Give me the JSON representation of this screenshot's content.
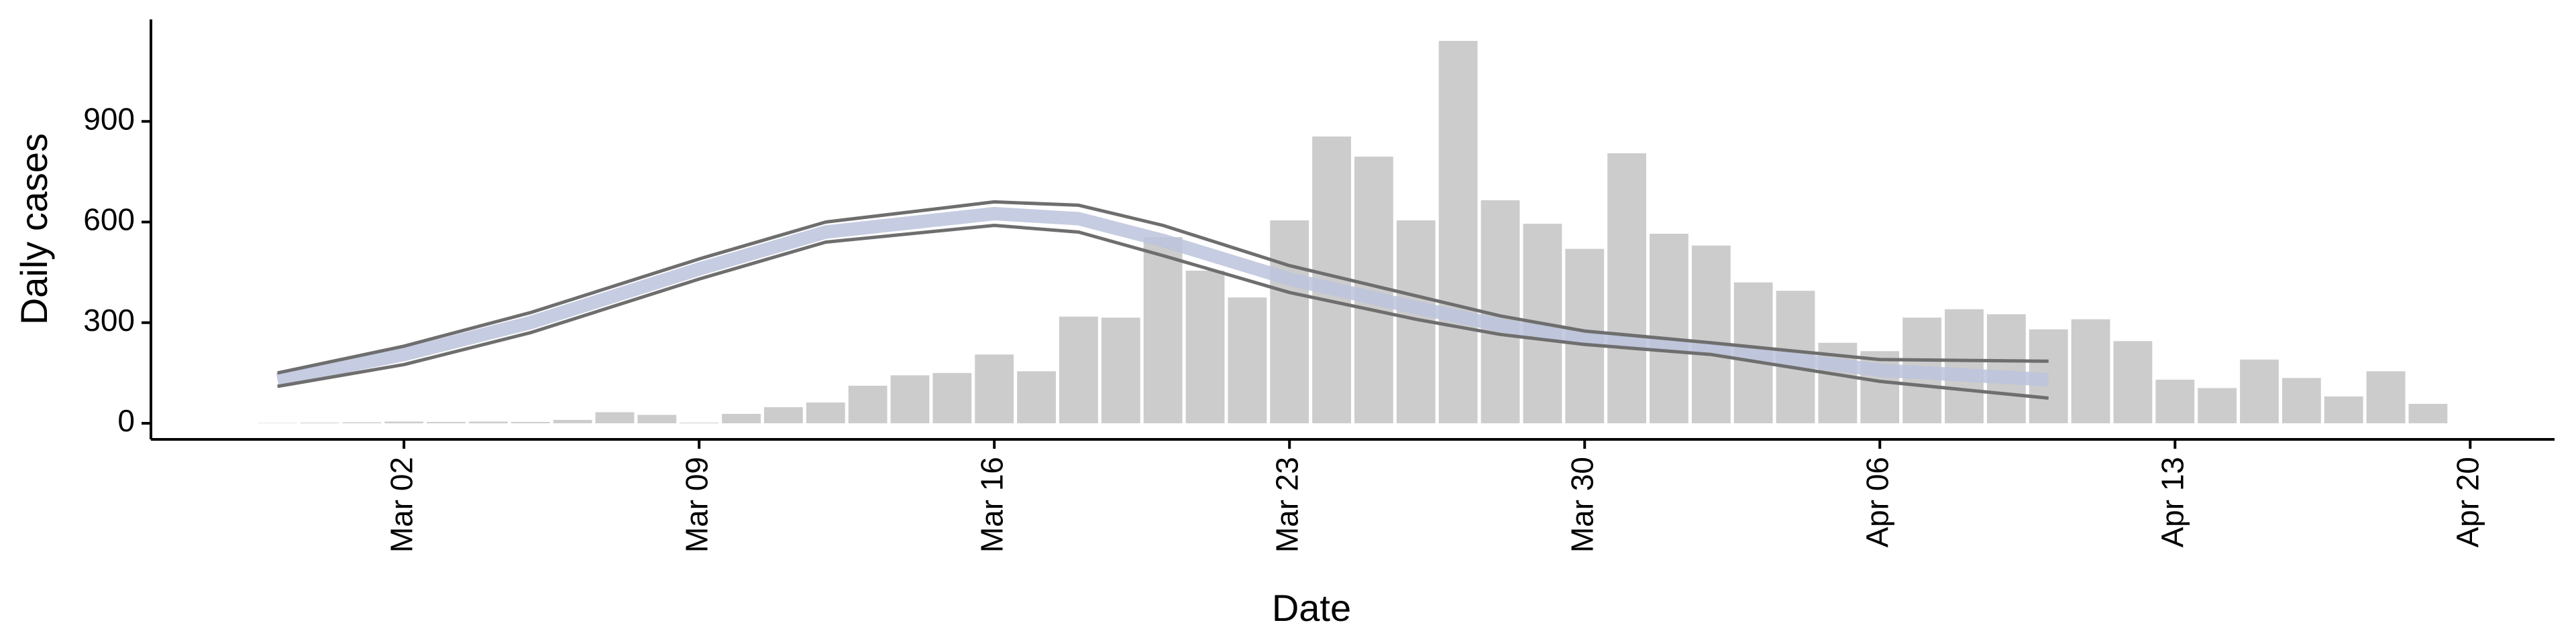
{
  "chart_data": {
    "type": "bar",
    "x_label": "Date",
    "y_label": "Daily cases",
    "x": [
      "02-28",
      "02-29",
      "03-01",
      "03-02",
      "03-03",
      "03-04",
      "03-05",
      "03-06",
      "03-07",
      "03-08",
      "03-09",
      "03-10",
      "03-11",
      "03-12",
      "03-13",
      "03-14",
      "03-15",
      "03-16",
      "03-17",
      "03-18",
      "03-19",
      "03-20",
      "03-21",
      "03-22",
      "03-23",
      "03-24",
      "03-25",
      "03-26",
      "03-27",
      "03-28",
      "03-29",
      "03-30",
      "03-31",
      "04-01",
      "04-02",
      "04-03",
      "04-04",
      "04-05",
      "04-06",
      "04-07",
      "04-08",
      "04-09",
      "04-10",
      "04-11",
      "04-12",
      "04-13",
      "04-14",
      "04-15",
      "04-16",
      "04-17",
      "04-18",
      "04-19"
    ],
    "values": [
      1,
      2,
      3,
      5,
      4,
      5,
      4,
      10,
      33,
      25,
      2,
      28,
      48,
      62,
      112,
      143,
      150,
      205,
      155,
      318,
      315,
      555,
      455,
      375,
      605,
      855,
      795,
      605,
      1140,
      665,
      595,
      520,
      805,
      565,
      530,
      420,
      395,
      240,
      215,
      315,
      340,
      325,
      280,
      310,
      245,
      130,
      105,
      190,
      135,
      80,
      155,
      58
    ],
    "color": "#cccccc",
    "bands": {
      "x": [
        "02-28",
        "03-02",
        "03-05",
        "03-09",
        "03-12",
        "03-16",
        "03-18",
        "03-20",
        "03-23",
        "03-26",
        "03-28",
        "03-30",
        "04-02",
        "04-06",
        "04-10"
      ],
      "upper": [
        150,
        230,
        330,
        490,
        600,
        660,
        650,
        590,
        470,
        380,
        320,
        275,
        240,
        190,
        185
      ],
      "mean": [
        130,
        205,
        300,
        460,
        570,
        625,
        610,
        545,
        430,
        345,
        292,
        255,
        222,
        158,
        130
      ],
      "lower": [
        110,
        175,
        270,
        430,
        540,
        590,
        570,
        500,
        390,
        310,
        265,
        235,
        205,
        125,
        75
      ],
      "line_color": "#6e6e6e",
      "ribbon_color": "#bcc3dc"
    },
    "xlim": [
      "02-25",
      "04-22"
    ],
    "xticks": [
      {
        "value": "03-02",
        "label": "Mar 02"
      },
      {
        "value": "03-09",
        "label": "Mar 09"
      },
      {
        "value": "03-16",
        "label": "Mar 16"
      },
      {
        "value": "03-23",
        "label": "Mar 23"
      },
      {
        "value": "03-30",
        "label": "Mar 30"
      },
      {
        "value": "04-06",
        "label": "Apr 06"
      },
      {
        "value": "04-13",
        "label": "Apr 13"
      },
      {
        "value": "04-20",
        "label": "Apr 20"
      }
    ],
    "ylim": [
      -48,
      1204
    ],
    "yticks": [
      0,
      300,
      600,
      900
    ],
    "grid": false
  }
}
